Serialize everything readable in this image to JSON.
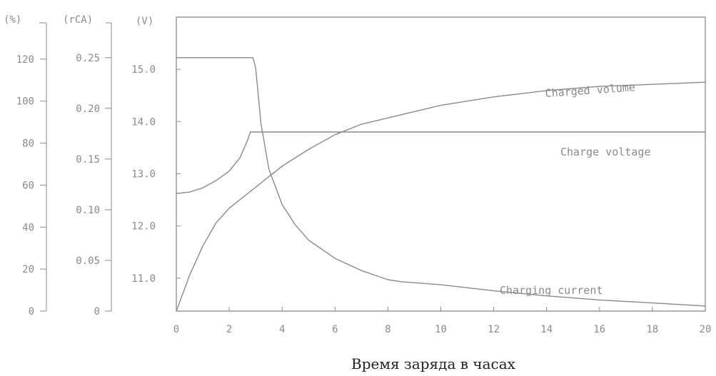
{
  "chart_data": {
    "type": "line",
    "title": "",
    "xlabel": "Время заряда в часах",
    "x_range": [
      0,
      20
    ],
    "x_ticks": [
      "0",
      "2",
      "4",
      "6",
      "8",
      "10",
      "12",
      "14",
      "16",
      "18",
      "20"
    ],
    "axes": {
      "percent": {
        "unit": "(%)",
        "range": [
          0,
          140
        ],
        "ticks": [
          "0",
          "20",
          "40",
          "60",
          "80",
          "100",
          "120"
        ]
      },
      "current": {
        "unit": "(rCA)",
        "range": [
          0,
          0.29
        ],
        "ticks": [
          "0",
          "0.05",
          "0.10",
          "0.15",
          "0.20",
          "0.25"
        ]
      },
      "voltage": {
        "unit": "(V)",
        "range": [
          10.37,
          16.0
        ],
        "ticks": [
          "11.0",
          "12.0",
          "13.0",
          "14.0",
          "15.0"
        ]
      }
    },
    "grid": false,
    "colors": {
      "axis": "#8a8a8a",
      "curve": "#8a8a8a",
      "text": "#8a8a8a",
      "xlabel": "#222222"
    },
    "series": [
      {
        "name": "Charged volume",
        "axis": "percent",
        "x": [
          0,
          0.5,
          1,
          1.5,
          2,
          3,
          4,
          5,
          6,
          7,
          8,
          10,
          12,
          14,
          16,
          18,
          20
        ],
        "y": [
          0,
          17,
          31,
          42,
          49,
          59,
          69,
          77,
          84,
          89,
          92,
          98,
          102,
          105,
          107,
          108,
          109
        ]
      },
      {
        "name": "Charge voltage",
        "axis": "voltage",
        "x": [
          0,
          0.5,
          1,
          1.5,
          2,
          2.4,
          2.7,
          2.8,
          4,
          6,
          8,
          10,
          12,
          14,
          16,
          18,
          20
        ],
        "y": [
          12.62,
          12.65,
          12.73,
          12.87,
          13.05,
          13.3,
          13.65,
          13.8,
          13.8,
          13.8,
          13.8,
          13.8,
          13.8,
          13.8,
          13.8,
          13.8,
          13.8
        ]
      },
      {
        "name": "Charging current",
        "axis": "current",
        "x": [
          0,
          2.9,
          3.0,
          3.2,
          3.5,
          4,
          4.5,
          5,
          6,
          7,
          8,
          8.5,
          10,
          12,
          14,
          16,
          18,
          20
        ],
        "y": [
          0.25,
          0.25,
          0.24,
          0.185,
          0.14,
          0.105,
          0.085,
          0.07,
          0.052,
          0.04,
          0.031,
          0.029,
          0.026,
          0.02,
          0.015,
          0.011,
          0.008,
          0.005
        ]
      }
    ]
  }
}
